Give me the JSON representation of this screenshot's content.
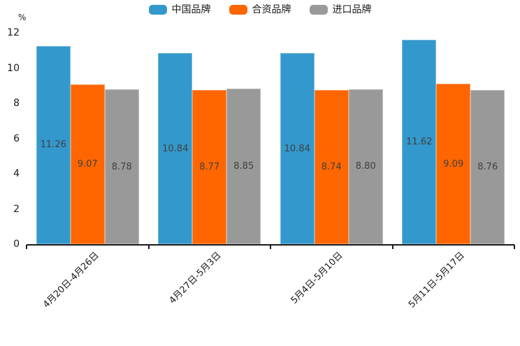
{
  "chart_data": {
    "type": "bar",
    "title": "",
    "ylabel": "%",
    "categories": [
      "4月20日-4月26日",
      "4月27日-5月3日",
      "5月4日-5月10日",
      "5月11日-5月17日"
    ],
    "series": [
      {
        "name": "中国品牌",
        "color": "#3398cc",
        "values": [
          11.26,
          10.84,
          10.84,
          11.62
        ],
        "value_labels": [
          "11.26",
          "10.84",
          "10.84",
          "11.62"
        ]
      },
      {
        "name": "合资品牌",
        "color": "#ff6600",
        "values": [
          9.07,
          8.77,
          8.74,
          9.09
        ],
        "value_labels": [
          "9.07",
          "8.77",
          "8.74",
          "9.09"
        ]
      },
      {
        "name": "进口品牌",
        "color": "#999999",
        "values": [
          8.78,
          8.85,
          8.8,
          8.76
        ],
        "value_labels": [
          "8.78",
          "8.85",
          "8.80",
          "8.76"
        ]
      }
    ],
    "yticks": [
      0,
      2,
      4,
      6,
      8,
      10,
      12
    ],
    "ylim": [
      0,
      12
    ],
    "grid": false,
    "legend_position": "top",
    "axis_color": "#1a1a1a",
    "value_label_color": "#404040"
  }
}
